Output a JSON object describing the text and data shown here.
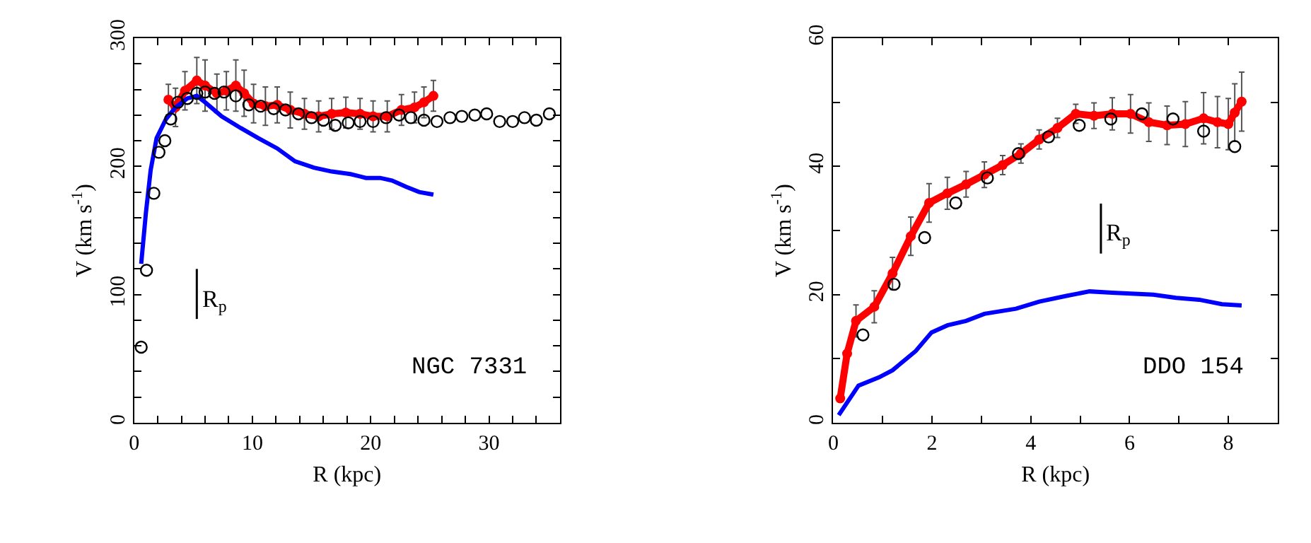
{
  "chart_data": [
    {
      "type": "line",
      "xlabel": "R (kpc)",
      "ylabel": "V (km s$^{-1}$)",
      "xlim": [
        0,
        36
      ],
      "ylim": [
        0,
        300
      ],
      "xticks": [
        0,
        {
          "value": 2,
          "label": null
        },
        {
          "value": 4,
          "label": null
        },
        {
          "value": 6,
          "label": null
        },
        {
          "value": 8,
          "label": null
        },
        10,
        {
          "value": 12,
          "label": null
        },
        {
          "value": 14,
          "label": null
        },
        {
          "value": 16,
          "label": null
        },
        {
          "value": 18,
          "label": null
        },
        20,
        {
          "value": 22,
          "label": null
        },
        {
          "value": 24,
          "label": null
        },
        {
          "value": 26,
          "label": null
        },
        {
          "value": 28,
          "label": null
        },
        30,
        {
          "value": 32,
          "label": null
        },
        {
          "value": 34,
          "label": null
        }
      ],
      "yticks": [
        0,
        {
          "value": 20,
          "label": null
        },
        {
          "value": 40,
          "label": null
        },
        {
          "value": 60,
          "label": null
        },
        {
          "value": 80,
          "label": null
        },
        100,
        {
          "value": 120,
          "label": null
        },
        {
          "value": 140,
          "label": null
        },
        {
          "value": 160,
          "label": null
        },
        {
          "value": 180,
          "label": null
        },
        200,
        {
          "value": 220,
          "label": null
        },
        {
          "value": 240,
          "label": null
        },
        {
          "value": 260,
          "label": null
        },
        {
          "value": 280,
          "label": null
        },
        300
      ],
      "annotations": [
        "NGC 7331"
      ],
      "ref_lines": [
        {
          "axis": "x",
          "value": 5.3,
          "label": "R$_{p}$"
        }
      ],
      "series": [
        {
          "type": "scatter",
          "marker": "circle",
          "color": "#000000",
          "x": [
            0.6,
            1.05,
            1.67,
            2.1,
            2.6,
            3.1,
            3.7,
            4.5,
            5.3,
            6.0,
            6.8,
            7.6,
            8.6,
            9.7,
            10.7,
            11.8,
            12.8,
            13.9,
            15.0,
            16.0,
            17.0,
            18.1,
            19.1,
            20.2,
            21.3,
            22.4,
            23.4,
            24.5,
            25.6,
            26.7,
            27.7,
            28.8,
            29.8,
            30.9,
            32.0,
            33.0,
            34.0,
            35.1
          ],
          "values": [
            59,
            119,
            179,
            211,
            220,
            237,
            250,
            253,
            257,
            258,
            257,
            258,
            255,
            248,
            247,
            245,
            244,
            241,
            238,
            236,
            232,
            234,
            235,
            235,
            238,
            240,
            238,
            236,
            235,
            238,
            239,
            240,
            241,
            235,
            235,
            238,
            236,
            241
          ]
        },
        {
          "marker": "circle",
          "color": "#ff0000",
          "x": [
            2.9,
            3.5,
            4.3,
            5.3,
            6.0,
            7.0,
            7.8,
            8.6,
            9.3,
            10.1,
            11.1,
            12.1,
            13.2,
            14.4,
            15.6,
            16.7,
            17.9,
            19.1,
            20.2,
            21.4,
            22.6,
            23.7,
            24.5,
            25.3
          ],
          "values": [
            252,
            246,
            259,
            267,
            263,
            257,
            259,
            263,
            257,
            249,
            247,
            248,
            244,
            241,
            239,
            241,
            242,
            241,
            239,
            239,
            244,
            246,
            250,
            255
          ],
          "errors": [
            12,
            15,
            15,
            18,
            20,
            15,
            15,
            20,
            18,
            15,
            15,
            14,
            14,
            12,
            12,
            12,
            12,
            12,
            12,
            12,
            12,
            12,
            12,
            12
          ]
        },
        {
          "marker": "none",
          "color": "#0000ff",
          "x": [
            0.6,
            1.0,
            1.4,
            1.9,
            2.7,
            3.5,
            4.5,
            5.3,
            6.0,
            7.4,
            9.0,
            10.5,
            12.1,
            13.6,
            15.2,
            16.7,
            18.3,
            19.6,
            20.8,
            21.8,
            23.0,
            24.1,
            25.3
          ],
          "values": [
            124,
            164,
            197,
            222,
            237,
            246,
            253,
            255,
            250,
            239,
            230,
            222,
            214,
            204,
            199,
            196,
            194,
            191,
            191,
            189,
            184,
            180,
            178
          ]
        }
      ]
    },
    {
      "type": "line",
      "xlabel": "R (kpc)",
      "ylabel": "V (km s$^{-1}$)",
      "xlim": [
        0,
        9
      ],
      "ylim": [
        0,
        60
      ],
      "xticks": [
        0,
        {
          "value": 1,
          "label": null
        },
        2,
        {
          "value": 3,
          "label": null
        },
        4,
        {
          "value": 5,
          "label": null
        },
        6,
        {
          "value": 7,
          "label": null
        },
        8
      ],
      "yticks": [
        0,
        {
          "value": 10,
          "label": null
        },
        20,
        {
          "value": 30,
          "label": null
        },
        40,
        {
          "value": 50,
          "label": null
        },
        60
      ],
      "annotations": [
        "DDO 154"
      ],
      "ref_lines": [
        {
          "axis": "x",
          "value": 5.42,
          "label": "R$_{p}$"
        }
      ],
      "series": [
        {
          "type": "scatter",
          "marker": "circle",
          "color": "#000000",
          "x": [
            0.6,
            1.23,
            1.85,
            2.48,
            3.12,
            3.75,
            4.36,
            4.98,
            5.62,
            6.25,
            6.88,
            7.5,
            8.13
          ],
          "values": [
            13.7,
            21.6,
            28.9,
            34.3,
            38.2,
            42.0,
            44.6,
            46.4,
            47.4,
            48.2,
            47.4,
            45.5,
            43.1
          ]
        },
        {
          "marker": "circle",
          "color": "#ff0000",
          "x": [
            0.14,
            0.28,
            0.46,
            0.83,
            1.2,
            1.57,
            1.94,
            2.31,
            2.69,
            3.06,
            3.43,
            3.8,
            4.17,
            4.54,
            4.91,
            5.28,
            5.65,
            6.02,
            6.39,
            6.76,
            7.13,
            7.5,
            7.78,
            8.0,
            8.13,
            8.27
          ],
          "values": [
            3.8,
            10.8,
            15.9,
            18.1,
            23.3,
            29.1,
            34.3,
            35.8,
            37.2,
            38.7,
            40.2,
            42.0,
            44.2,
            46.0,
            48.2,
            47.9,
            48.2,
            48.2,
            46.9,
            46.4,
            46.6,
            47.5,
            46.9,
            46.6,
            48.4,
            50.1
          ],
          "errors": [
            null,
            null,
            2.5,
            2.5,
            2.5,
            3,
            3,
            2.5,
            2,
            2,
            1.5,
            1.5,
            1.5,
            1.5,
            1.5,
            2,
            2.5,
            3,
            3,
            3,
            3.5,
            4,
            4,
            4,
            4.5,
            4.6
          ]
        },
        {
          "marker": "none",
          "color": "#0000ff",
          "x": [
            0.11,
            0.51,
            0.93,
            1.2,
            1.67,
            1.99,
            2.31,
            2.69,
            3.06,
            3.7,
            4.17,
            4.72,
            5.19,
            5.65,
            6.48,
            6.94,
            7.41,
            7.87,
            8.27
          ],
          "values": [
            1.2,
            5.8,
            7.1,
            8.2,
            11.2,
            14.1,
            15.2,
            15.9,
            17.0,
            17.8,
            18.9,
            19.8,
            20.5,
            20.3,
            20.0,
            19.5,
            19.2,
            18.5,
            18.3
          ]
        }
      ]
    }
  ]
}
